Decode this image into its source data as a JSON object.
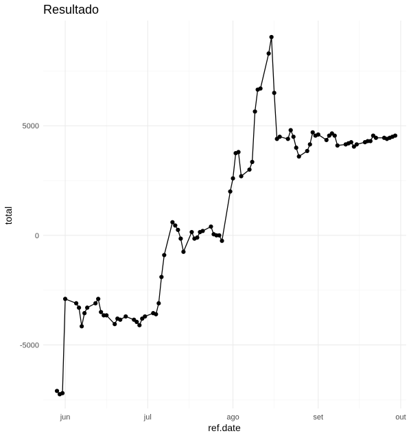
{
  "chart_data": {
    "type": "line",
    "title": "Resultado",
    "xlabel": "ref.date",
    "ylabel": "total",
    "grid": true,
    "x_ticks": [
      {
        "date": "2023-06-01",
        "label": "jun"
      },
      {
        "date": "2023-07-01",
        "label": "jul"
      },
      {
        "date": "2023-08-01",
        "label": "ago"
      },
      {
        "date": "2023-09-01",
        "label": "set"
      },
      {
        "date": "2023-10-01",
        "label": "out"
      }
    ],
    "x_minor_ticks": [
      "2023-06-16",
      "2023-07-16",
      "2023-08-16",
      "2023-09-16"
    ],
    "y_ticks": [
      {
        "value": -5000,
        "label": "-5000"
      },
      {
        "value": 0,
        "label": "0"
      },
      {
        "value": 5000,
        "label": "5000"
      }
    ],
    "y_minor_ticks": [
      -7500,
      -2500,
      2500,
      7500
    ],
    "xlim": [
      "2023-05-24",
      "2023-10-03"
    ],
    "ylim": [
      -7900,
      9800
    ],
    "series": [
      {
        "x": [
          "2023-05-29",
          "2023-05-30",
          "2023-05-31",
          "2023-06-01",
          "2023-06-05",
          "2023-06-06",
          "2023-06-07",
          "2023-06-08",
          "2023-06-09",
          "2023-06-12",
          "2023-06-13",
          "2023-06-14",
          "2023-06-15",
          "2023-06-16",
          "2023-06-19",
          "2023-06-20",
          "2023-06-21",
          "2023-06-23",
          "2023-06-26",
          "2023-06-27",
          "2023-06-28",
          "2023-06-29",
          "2023-06-30",
          "2023-07-03",
          "2023-07-04",
          "2023-07-05",
          "2023-07-06",
          "2023-07-07",
          "2023-07-10",
          "2023-07-11",
          "2023-07-12",
          "2023-07-13",
          "2023-07-14",
          "2023-07-17",
          "2023-07-18",
          "2023-07-19",
          "2023-07-20",
          "2023-07-21",
          "2023-07-24",
          "2023-07-25",
          "2023-07-26",
          "2023-07-27",
          "2023-07-28",
          "2023-07-31",
          "2023-08-01",
          "2023-08-02",
          "2023-08-03",
          "2023-08-04",
          "2023-08-07",
          "2023-08-08",
          "2023-08-09",
          "2023-08-10",
          "2023-08-11",
          "2023-08-14",
          "2023-08-15",
          "2023-08-16",
          "2023-08-17",
          "2023-08-18",
          "2023-08-21",
          "2023-08-22",
          "2023-08-23",
          "2023-08-24",
          "2023-08-25",
          "2023-08-28",
          "2023-08-29",
          "2023-08-30",
          "2023-08-31",
          "2023-09-01",
          "2023-09-04",
          "2023-09-05",
          "2023-09-06",
          "2023-09-07",
          "2023-09-08",
          "2023-09-11",
          "2023-09-12",
          "2023-09-13",
          "2023-09-14",
          "2023-09-15",
          "2023-09-18",
          "2023-09-19",
          "2023-09-20",
          "2023-09-21",
          "2023-09-22",
          "2023-09-25",
          "2023-09-26",
          "2023-09-27",
          "2023-09-28",
          "2023-09-29"
        ],
        "y": [
          -7100,
          -7250,
          -7200,
          -2900,
          -3100,
          -3300,
          -4150,
          -3550,
          -3300,
          -3100,
          -2900,
          -3500,
          -3650,
          -3650,
          -4050,
          -3800,
          -3850,
          -3700,
          -3850,
          -3950,
          -4100,
          -3800,
          -3700,
          -3550,
          -3600,
          -3100,
          -1900,
          -900,
          600,
          450,
          250,
          -150,
          -750,
          150,
          -150,
          -100,
          150,
          200,
          400,
          50,
          0,
          0,
          -250,
          2000,
          2600,
          3750,
          3800,
          2700,
          3000,
          3350,
          5650,
          6650,
          6700,
          8300,
          9050,
          6500,
          4400,
          4500,
          4400,
          4800,
          4500,
          4000,
          3600,
          3850,
          4150,
          4700,
          4550,
          4600,
          4350,
          4550,
          4650,
          4550,
          4100,
          4150,
          4200,
          4250,
          4050,
          4150,
          4250,
          4300,
          4300,
          4550,
          4450,
          4450,
          4400,
          4450,
          4500,
          4550
        ]
      }
    ]
  }
}
